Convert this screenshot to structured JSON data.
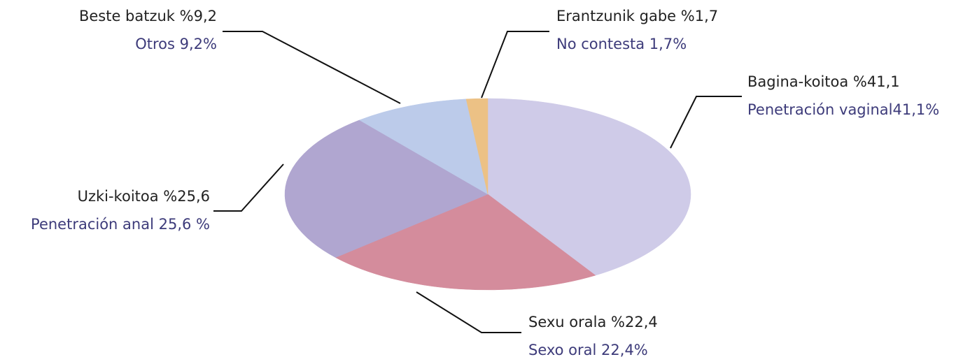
{
  "chart_data": {
    "type": "pie",
    "values": [
      41.1,
      22.4,
      25.6,
      9.2,
      1.7
    ],
    "value_labels": [
      [
        "Bagina-koitoa %41,1",
        "Penetración vaginal41,1%"
      ],
      [
        "Sexu orala %22,4",
        "Sexo oral 22,4%"
      ],
      [
        "Uzki-koitoa %25,6",
        "Penetración anal 25,6 %"
      ],
      [
        "Beste batzuk %9,2",
        "Otros 9,2%"
      ],
      [
        "Erantzunik gabe %1,7",
        "No contesta 1,7%"
      ]
    ],
    "colors": [
      "#cfcbe8",
      "#d48c9c",
      "#b0a6d0",
      "#bccbea",
      "#ecc185"
    ]
  }
}
